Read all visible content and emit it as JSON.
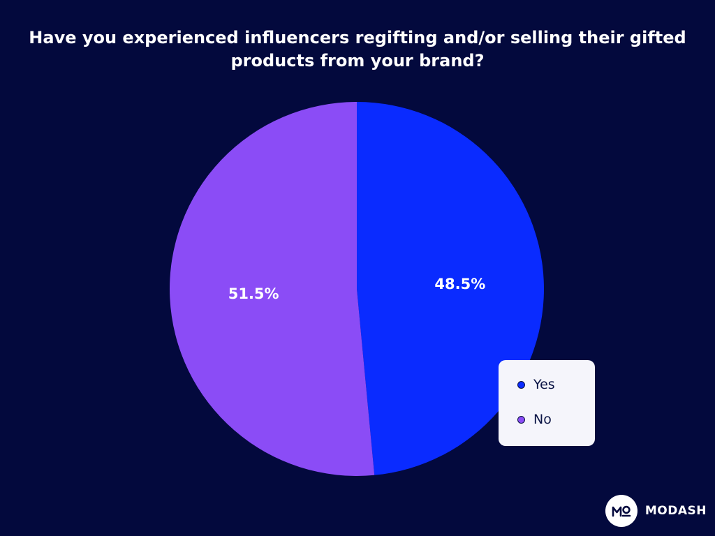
{
  "colors": {
    "background": "#03093d",
    "yes": "#0a2bff",
    "no": "#8b4cf6",
    "legend_background": "#f5f5fb"
  },
  "brand": {
    "name": "MODASH",
    "logo_icon": "modash-logo-icon"
  },
  "chart_data": {
    "type": "pie",
    "title": "Have you experienced influencers regifting and/or selling their gifted products from your brand?",
    "categories": [
      "Yes",
      "No"
    ],
    "values": [
      48.5,
      51.5
    ],
    "data_labels": [
      "48.5%",
      "51.5%"
    ],
    "legend": {
      "placement": "bottom-right",
      "entries": [
        "Yes",
        "No"
      ]
    }
  }
}
